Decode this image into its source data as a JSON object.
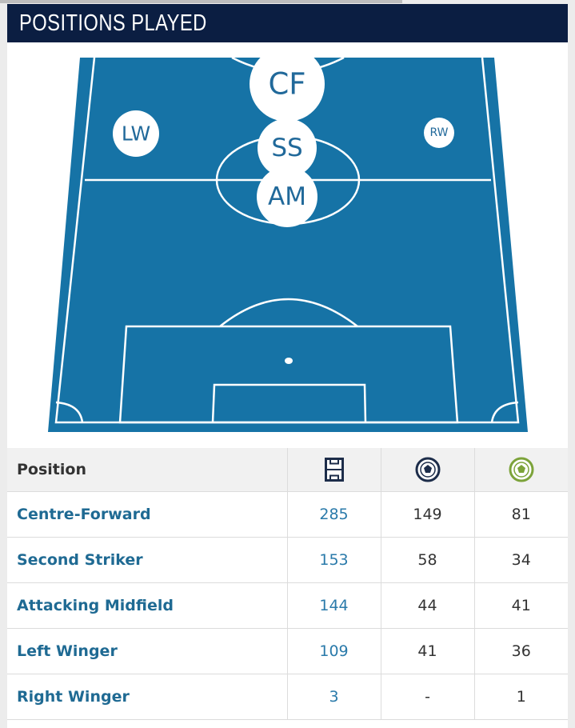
{
  "header": {
    "title": "POSITIONS PLAYED"
  },
  "pitch": {
    "positions": [
      {
        "label": "CF"
      },
      {
        "label": "SS"
      },
      {
        "label": "AM"
      },
      {
        "label": "LW"
      },
      {
        "label": "RW"
      }
    ]
  },
  "table": {
    "columns": [
      "Position"
    ],
    "rows": [
      [
        "Centre-Forward",
        285,
        149,
        81
      ],
      [
        "Second Striker",
        153,
        58,
        34
      ],
      [
        "Attacking Midfield",
        144,
        44,
        41
      ],
      [
        "Left Winger",
        109,
        41,
        36
      ],
      [
        "Right Winger",
        3,
        "-",
        1
      ]
    ]
  }
}
